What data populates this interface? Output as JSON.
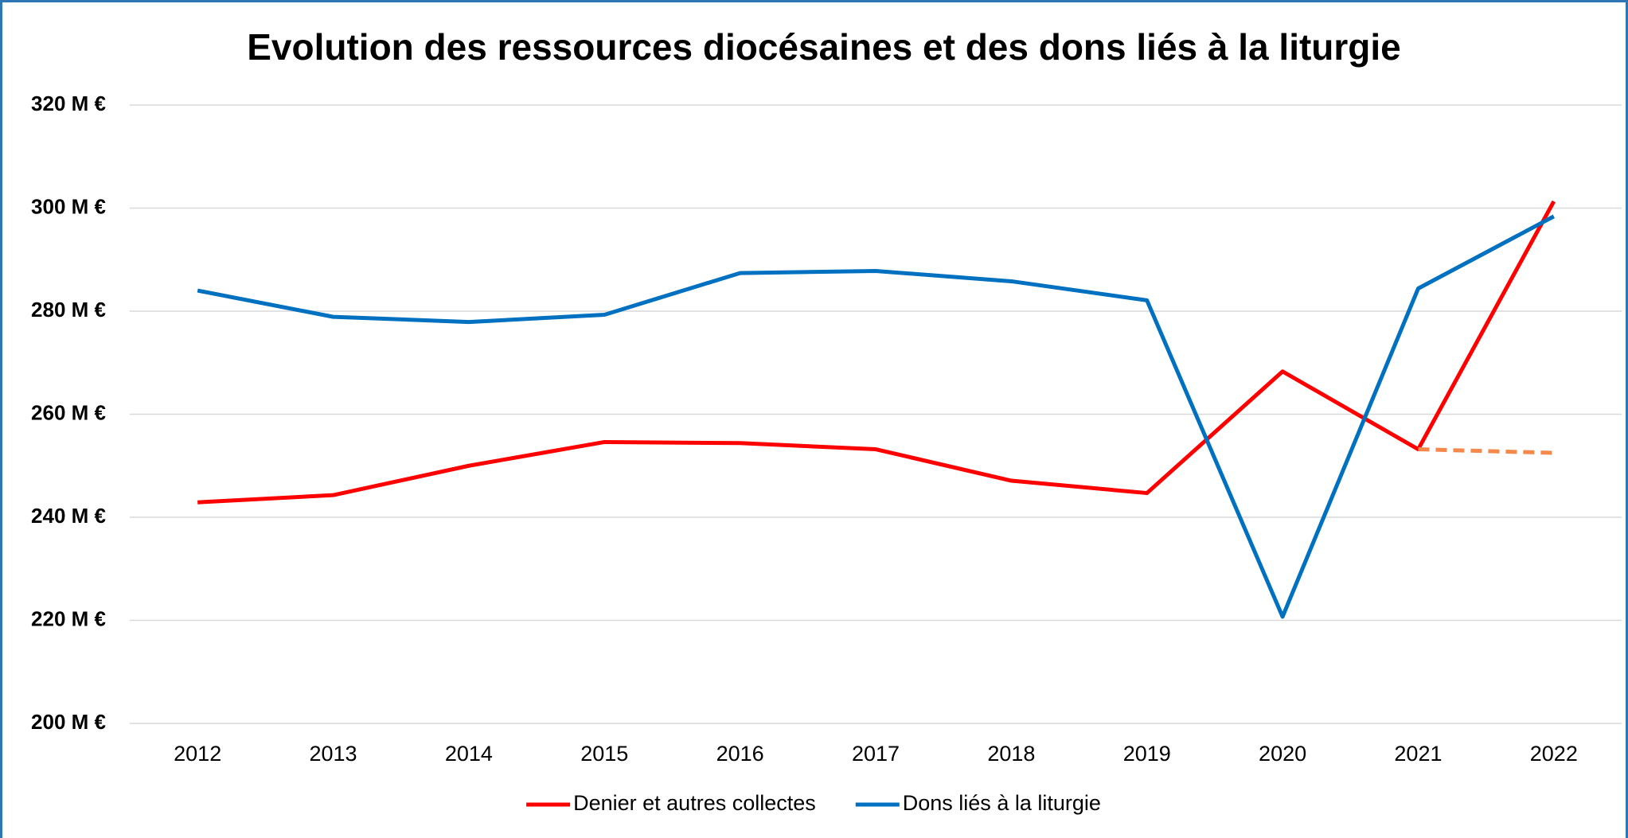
{
  "chart_data": {
    "type": "line",
    "title": "Evolution des ressources diocésaines et des dons liés à la liturgie",
    "categories": [
      "2012",
      "2013",
      "2014",
      "2015",
      "2016",
      "2017",
      "2018",
      "2019",
      "2020",
      "2021",
      "2022"
    ],
    "series": [
      {
        "name": "Denier et autres collectes",
        "color": "#ff0000",
        "values": [
          242.9,
          244.3,
          250.0,
          254.6,
          254.4,
          253.2,
          247.1,
          244.7,
          268.3,
          253.2,
          301.3
        ]
      },
      {
        "name": "Dons liés à la liturgie",
        "color": "#0070c0",
        "values": [
          284.0,
          278.9,
          277.9,
          279.3,
          287.4,
          287.8,
          285.8,
          282.1,
          220.7,
          284.4,
          298.4
        ]
      },
      {
        "color": "#f4894b",
        "dashed": true,
        "values": [
          null,
          null,
          null,
          null,
          null,
          null,
          null,
          null,
          null,
          253.2,
          252.5
        ]
      }
    ],
    "ylim": [
      200,
      320
    ],
    "yticks": [
      {
        "value": 200,
        "label": "200 M €"
      },
      {
        "value": 220,
        "label": "220 M €"
      },
      {
        "value": 240,
        "label": "240 M €"
      },
      {
        "value": 260,
        "label": "260 M €"
      },
      {
        "value": 280,
        "label": "280 M €"
      },
      {
        "value": 300,
        "label": "300 M €"
      },
      {
        "value": 320,
        "label": "320 M €"
      }
    ],
    "grid": true,
    "legend": "bottom"
  }
}
